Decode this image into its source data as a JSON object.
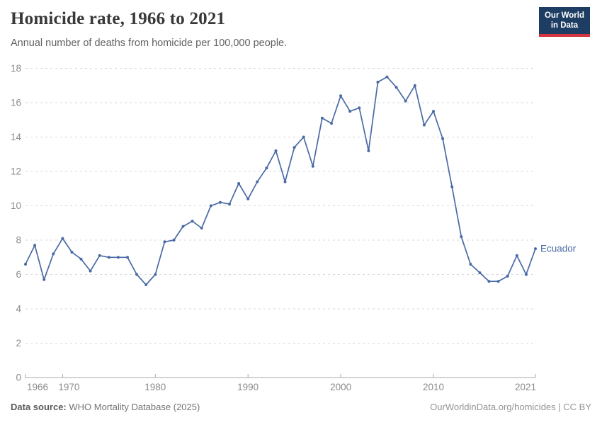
{
  "header": {
    "title": "Homicide rate, 1966 to 2021",
    "subtitle": "Annual number of deaths from homicide per 100,000 people.",
    "logo_line1": "Our World",
    "logo_line2": "in Data"
  },
  "chart_data": {
    "type": "line",
    "title": "Homicide rate, 1966 to 2021",
    "xlabel": "",
    "ylabel": "Annual number of deaths from homicide per 100,000 people",
    "xlim": [
      1966,
      2021
    ],
    "ylim": [
      0,
      18
    ],
    "grid": "horizontal-dashed",
    "legend_position": "end-of-line",
    "x_ticks": [
      1966,
      1970,
      1980,
      1990,
      2000,
      2010,
      2021
    ],
    "x_tick_anchors": [
      "start",
      "middle",
      "middle",
      "middle",
      "middle",
      "middle",
      "end"
    ],
    "x_tick_dx": [
      2,
      9,
      0,
      0,
      0,
      0,
      1
    ],
    "y_ticks": [
      0,
      2,
      4,
      6,
      8,
      10,
      12,
      14,
      16,
      18
    ],
    "series": [
      {
        "name": "Ecuador",
        "end_label": "Ecuador",
        "x": [
          1966,
          1967,
          1968,
          1969,
          1970,
          1971,
          1972,
          1973,
          1974,
          1975,
          1976,
          1977,
          1978,
          1979,
          1980,
          1981,
          1982,
          1983,
          1984,
          1985,
          1986,
          1987,
          1988,
          1989,
          1990,
          1991,
          1992,
          1993,
          1994,
          1995,
          1996,
          1997,
          1998,
          1999,
          2000,
          2001,
          2002,
          2003,
          2004,
          2005,
          2006,
          2007,
          2008,
          2009,
          2010,
          2011,
          2012,
          2013,
          2014,
          2015,
          2016,
          2017,
          2018,
          2019,
          2020,
          2021
        ],
        "values": [
          6.6,
          7.7,
          5.7,
          7.2,
          8.1,
          7.3,
          6.9,
          6.2,
          7.1,
          7.0,
          7.0,
          7.0,
          6.0,
          5.4,
          6.0,
          7.9,
          8.0,
          8.8,
          9.1,
          8.7,
          10.0,
          10.2,
          10.1,
          11.3,
          10.4,
          11.4,
          12.2,
          13.2,
          11.4,
          13.4,
          14.0,
          12.3,
          15.1,
          14.8,
          16.4,
          15.5,
          15.7,
          13.2,
          17.2,
          17.5,
          16.9,
          16.1,
          17.0,
          14.7,
          15.5,
          13.9,
          11.1,
          8.2,
          6.6,
          6.1,
          5.6,
          5.6,
          5.9,
          7.1,
          6.0,
          7.5
        ]
      }
    ]
  },
  "colors": {
    "line": "#4a6aa5",
    "title": "#383838",
    "subtitle": "#616161",
    "axis_label": "#8b8b8b",
    "gridline": "#d9d9d9",
    "axis_line": "#a8a8a8",
    "logo_bg": "#1d3d63",
    "logo_stripe": "#d4353e"
  },
  "footer": {
    "source_label": "Data source:",
    "source_value": " WHO Mortality Database (2025)",
    "right": "OurWorldinData.org/homicides | CC BY"
  }
}
